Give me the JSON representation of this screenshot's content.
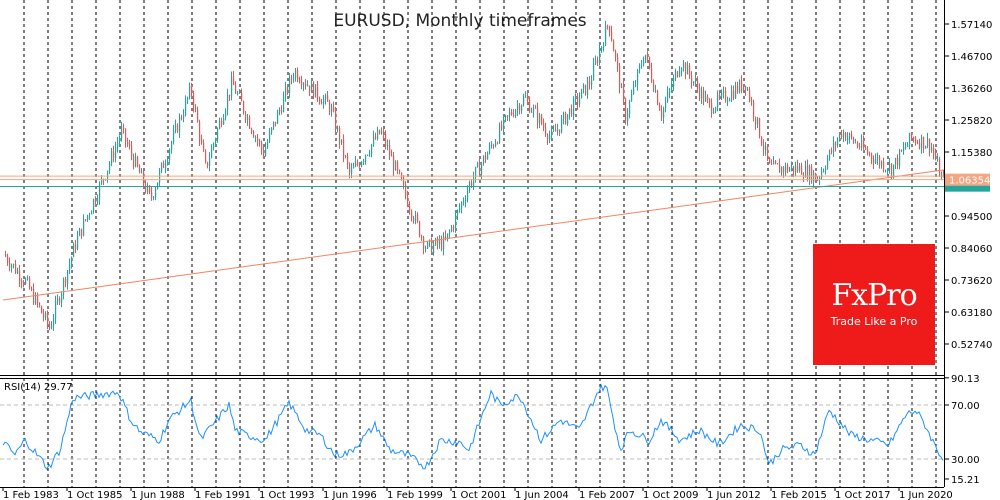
{
  "chart_data": [
    {
      "type": "candlestick",
      "title": "EURUSD, Monthly timeframes",
      "x_unit": "year",
      "xlim": [
        1983.08,
        2022.3
      ],
      "ylim": [
        0.4945,
        1.6047
      ],
      "y_ticks": [
        "1.57140",
        "1.46700",
        "1.36260",
        "1.25820",
        "1.15380",
        "0.94500",
        "0.84060",
        "0.73620",
        "0.63180",
        "0.52740"
      ],
      "x_tick_labels": [
        "1 Feb 1983",
        "1 Oct 1985",
        "1 Jun 1988",
        "1 Feb 1991",
        "1 Oct 1993",
        "1 Jun 1996",
        "1 Feb 1999",
        "1 Oct 2001",
        "1 Jun 2004",
        "1 Feb 2007",
        "1 Oct 2009",
        "1 Jun 2012",
        "1 Feb 2015",
        "1 Oct 2017",
        "1 Jun 2020"
      ],
      "current_price_label": "1.06354",
      "current_price": 1.06354,
      "grid": "vertical dashed",
      "colors": {
        "up": "#26a69a",
        "down": "#ef5350",
        "trendline": "#f4845f",
        "price_line": "#f4a582",
        "bid_line": "#26a69a"
      },
      "close_path": [
        [
          1983.1,
          0.82
        ],
        [
          1984.0,
          0.73
        ],
        [
          1985.0,
          0.58
        ],
        [
          1986.1,
          0.86
        ],
        [
          1987.3,
          1.08
        ],
        [
          1988.0,
          1.22
        ],
        [
          1989.2,
          1.0
        ],
        [
          1990.9,
          1.36
        ],
        [
          1991.5,
          1.1
        ],
        [
          1992.6,
          1.38
        ],
        [
          1993.9,
          1.15
        ],
        [
          1995.2,
          1.42
        ],
        [
          1996.7,
          1.3
        ],
        [
          1997.5,
          1.08
        ],
        [
          1998.8,
          1.22
        ],
        [
          2000.7,
          0.84
        ],
        [
          2001.5,
          0.86
        ],
        [
          2002.5,
          1.05
        ],
        [
          2004.2,
          1.28
        ],
        [
          2004.8,
          1.33
        ],
        [
          2005.9,
          1.2
        ],
        [
          2007.5,
          1.38
        ],
        [
          2008.3,
          1.58
        ],
        [
          2009.0,
          1.27
        ],
        [
          2009.8,
          1.48
        ],
        [
          2010.5,
          1.28
        ],
        [
          2011.3,
          1.45
        ],
        [
          2012.5,
          1.3
        ],
        [
          2014.0,
          1.38
        ],
        [
          2015.0,
          1.1
        ],
        [
          2016.3,
          1.1
        ],
        [
          2017.0,
          1.07
        ],
        [
          2018.0,
          1.22
        ],
        [
          2019.6,
          1.12
        ],
        [
          2020.1,
          1.1
        ],
        [
          2020.9,
          1.2
        ],
        [
          2021.7,
          1.18
        ],
        [
          2022.2,
          1.06
        ]
      ],
      "trendline": [
        [
          1983.08,
          0.671
        ],
        [
          2022.25,
          1.095
        ]
      ],
      "horizontal_lines": [
        1.06354,
        1.075
      ]
    },
    {
      "type": "line",
      "label": "RSI(14) 29.77",
      "ylim": [
        15.21,
        90.13
      ],
      "y_ticks": [
        "90.13",
        "70.00",
        "30.00",
        "15.21"
      ],
      "levels": [
        70,
        30
      ],
      "color": "#1e90ff",
      "points": [
        [
          1983.08,
          42.6
        ],
        [
          1983.58,
          33
        ],
        [
          1984.0,
          44
        ],
        [
          1984.96,
          23.3
        ],
        [
          1985.46,
          36.7
        ],
        [
          1986.0,
          75.2
        ],
        [
          1986.9,
          77.4
        ],
        [
          1987.9,
          79.6
        ],
        [
          1988.4,
          58.9
        ],
        [
          1988.8,
          50
        ],
        [
          1989.6,
          44
        ],
        [
          1990.0,
          58.9
        ],
        [
          1990.9,
          73.7
        ],
        [
          1991.3,
          44
        ],
        [
          1992.5,
          70
        ],
        [
          1992.75,
          51.5
        ],
        [
          1993.2,
          47.8
        ],
        [
          1994.0,
          44
        ],
        [
          1995.0,
          71.5
        ],
        [
          1995.7,
          51.5
        ],
        [
          1996.3,
          47.8
        ],
        [
          1996.9,
          33
        ],
        [
          1997.5,
          34.4
        ],
        [
          1998.6,
          55.2
        ],
        [
          1999.2,
          36.7
        ],
        [
          2000.0,
          32.2
        ],
        [
          2000.7,
          24.1
        ],
        [
          2001.3,
          44
        ],
        [
          2002.1,
          42.6
        ],
        [
          2002.5,
          36.7
        ],
        [
          2003.4,
          78.9
        ],
        [
          2003.8,
          70
        ],
        [
          2004.6,
          77.4
        ],
        [
          2005.5,
          44
        ],
        [
          2006.3,
          58.9
        ],
        [
          2007.1,
          51.5
        ],
        [
          2007.9,
          81.1
        ],
        [
          2008.2,
          84.8
        ],
        [
          2008.8,
          36.7
        ],
        [
          2009.2,
          51.5
        ],
        [
          2010.0,
          44
        ],
        [
          2010.5,
          58.9
        ],
        [
          2011.3,
          44
        ],
        [
          2012.1,
          51.5
        ],
        [
          2012.9,
          40.4
        ],
        [
          2013.8,
          55.2
        ],
        [
          2014.6,
          51.5
        ],
        [
          2015.0,
          25.6
        ],
        [
          2015.5,
          36.7
        ],
        [
          2016.3,
          40.4
        ],
        [
          2016.9,
          33
        ],
        [
          2017.5,
          66.3
        ],
        [
          2018.4,
          47.8
        ],
        [
          2019.2,
          44
        ],
        [
          2020.0,
          40.4
        ],
        [
          2020.7,
          62.6
        ],
        [
          2021.1,
          66.3
        ],
        [
          2021.5,
          55.2
        ],
        [
          2021.9,
          40.4
        ],
        [
          2022.25,
          29.77
        ]
      ]
    }
  ],
  "logo": {
    "brand": "FxPro",
    "tagline": "Trade Like a Pro"
  }
}
